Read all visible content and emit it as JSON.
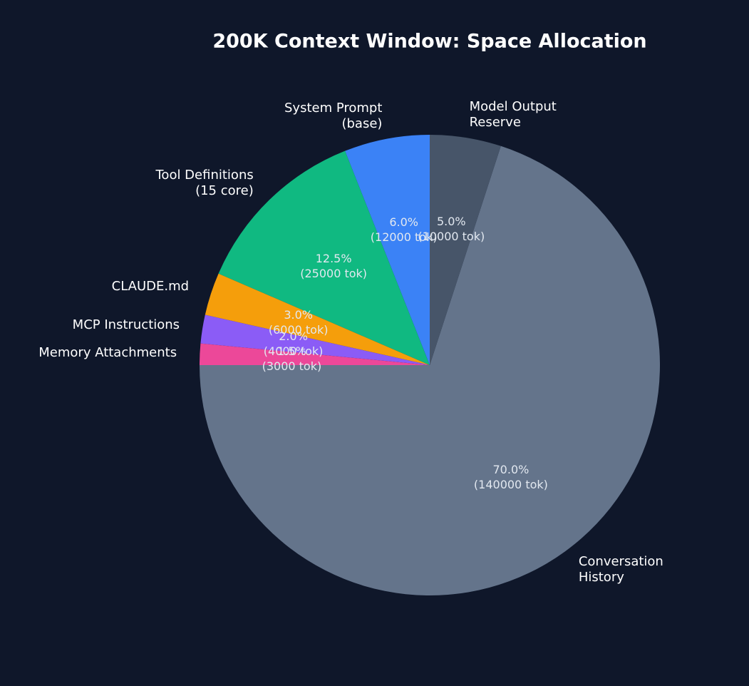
{
  "chart_data": {
    "type": "pie",
    "title": "200K Context Window: Space Allocation",
    "categories": [
      "System Prompt\n(base)",
      "Tool Definitions\n(15 core)",
      "CLAUDE.md",
      "MCP Instructions",
      "Memory Attachments",
      "Conversation\nHistory",
      "Model Output\nReserve"
    ],
    "values": [
      12000,
      25000,
      6000,
      4000,
      3000,
      140000,
      10000
    ],
    "value_labels": [
      "6.0%\n(12000 tok)",
      "12.5%\n(25000 tok)",
      "3.0%\n(6000 tok)",
      "2.0%\n(4000 tok)",
      "1.5%\n(3000 tok)",
      "70.0%\n(140000 tok)",
      "5.0%\n(10000 tok)"
    ],
    "colors": [
      "#3b82f6",
      "#10b981",
      "#f59e0b",
      "#8b5cf6",
      "#ec4899",
      "#64748b",
      "#475569"
    ]
  }
}
